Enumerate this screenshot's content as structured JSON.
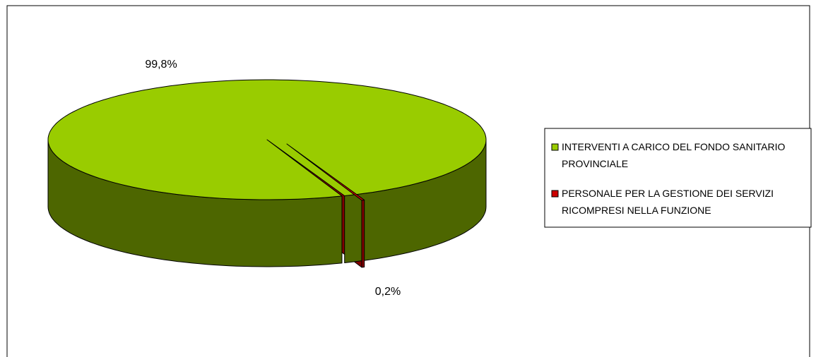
{
  "chart_data": {
    "type": "pie",
    "categories": [
      "INTERVENTI A CARICO DEL FONDO SANITARIO PROVINCIALE",
      "PERSONALE PER LA GESTIONE DEI SERVIZI RICOMPRESI NELLA FUNZIONE"
    ],
    "values": [
      99.8,
      0.2
    ],
    "value_labels": [
      "99,8%",
      "0,2%"
    ],
    "colors": [
      "#99cc00",
      "#cc0000"
    ],
    "legend": "right"
  }
}
